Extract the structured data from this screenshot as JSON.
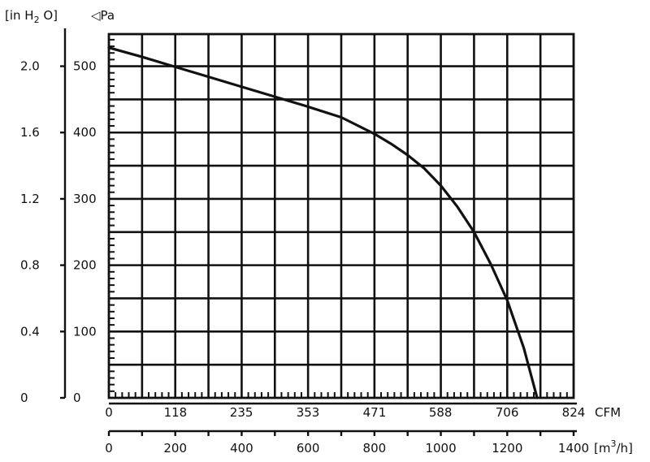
{
  "chart_data": {
    "type": "line",
    "title": "",
    "units": {
      "pressure_inh2o": "[in H2O]",
      "pressure_inh2o_parts": [
        "[in H",
        "2",
        " O]"
      ],
      "pressure_pa": "◁Pa",
      "flow_cfm": "CFM",
      "flow_m3h": "[m3/h]",
      "flow_m3h_parts": [
        "[m",
        "3",
        "/h]"
      ]
    },
    "x_axis": {
      "unit": "m3/h",
      "range": [
        0,
        1400
      ],
      "ticks": [
        0,
        200,
        400,
        600,
        800,
        1000,
        1200,
        1400
      ],
      "tick_labels": [
        "0",
        "200",
        "400",
        "600",
        "800",
        "1000",
        "1200",
        "1400"
      ]
    },
    "x2_axis": {
      "unit": "CFM",
      "range": [
        0,
        824
      ],
      "ticks": [
        0,
        118,
        235,
        353,
        471,
        588,
        706,
        824
      ],
      "tick_labels": [
        "0",
        "118",
        "235",
        "353",
        "471",
        "588",
        "706",
        "824"
      ]
    },
    "y_axis": {
      "unit": "Pa",
      "range": [
        0,
        500
      ],
      "ticks": [
        0,
        100,
        200,
        300,
        400,
        500
      ],
      "tick_labels": [
        "0",
        "100",
        "200",
        "300",
        "400",
        "500"
      ]
    },
    "y2_axis": {
      "unit": "in H2O",
      "range": [
        0,
        2.0
      ],
      "ticks": [
        0,
        0.4,
        0.8,
        1.2,
        1.6,
        2.0
      ],
      "tick_labels": [
        "0",
        "0.4",
        "0.8",
        "1.2",
        "1.6",
        "2.0"
      ]
    },
    "grid": true,
    "series": [
      {
        "x": [
          0,
          100,
          200,
          300,
          400,
          500,
          600,
          700,
          800,
          850,
          900,
          950,
          1000,
          1050,
          1100,
          1150,
          1200,
          1250,
          1290
        ],
        "y": [
          528,
          514,
          499,
          484,
          469,
          454,
          439,
          423,
          398,
          383,
          366,
          346,
          320,
          288,
          250,
          202,
          147,
          75,
          0
        ]
      }
    ]
  },
  "colors": {
    "ink": "#111111",
    "background": "#ffffff"
  }
}
